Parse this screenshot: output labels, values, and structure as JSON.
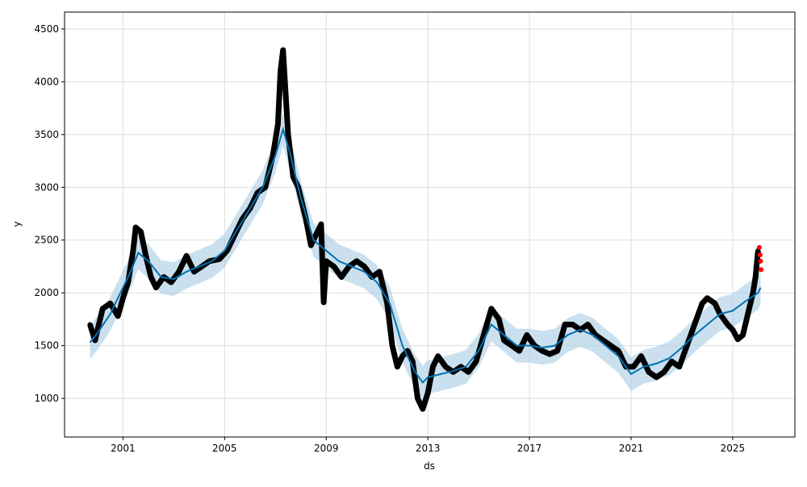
{
  "chart_data": {
    "type": "scatter",
    "title": "",
    "xlabel": "ds",
    "ylabel": "y",
    "xlim": [
      1998.7,
      2027.45
    ],
    "ylim": [
      634,
      4660
    ],
    "grid": true,
    "x_ticks": [
      2001,
      2005,
      2009,
      2013,
      2017,
      2021,
      2025
    ],
    "x_tick_labels": [
      "2001",
      "2005",
      "2009",
      "2013",
      "2017",
      "2021",
      "2025"
    ],
    "y_ticks": [
      1000,
      1500,
      2000,
      2500,
      3000,
      3500,
      4000,
      4500
    ],
    "y_tick_labels": [
      "1000",
      "1500",
      "2000",
      "2500",
      "3000",
      "3500",
      "4000",
      "4500"
    ],
    "colors": {
      "actual": "#000000",
      "forecast": "#0072B2",
      "interval": "#a6cbe3",
      "holdout": "#ff0000"
    },
    "forecast": {
      "x": [
        1999.7,
        2000.0,
        2000.5,
        2001.0,
        2001.3,
        2001.6,
        2002.0,
        2002.5,
        2003.0,
        2003.5,
        2004.0,
        2004.5,
        2005.0,
        2005.5,
        2006.0,
        2006.5,
        2007.0,
        2007.3,
        2007.6,
        2008.0,
        2008.5,
        2009.0,
        2009.5,
        2010.0,
        2010.5,
        2011.0,
        2011.5,
        2012.0,
        2012.5,
        2012.8,
        2013.0,
        2013.5,
        2014.0,
        2014.5,
        2015.0,
        2015.5,
        2016.0,
        2016.5,
        2017.0,
        2017.5,
        2018.0,
        2018.5,
        2019.0,
        2019.5,
        2020.0,
        2020.5,
        2021.0,
        2021.5,
        2022.0,
        2022.5,
        2023.0,
        2023.5,
        2024.0,
        2024.5,
        2025.0,
        2025.5,
        2026.0,
        2026.1
      ],
      "yhat": [
        1530,
        1620,
        1800,
        2050,
        2200,
        2380,
        2300,
        2150,
        2130,
        2200,
        2250,
        2300,
        2400,
        2600,
        2800,
        3000,
        3300,
        3550,
        3300,
        2900,
        2500,
        2400,
        2300,
        2250,
        2200,
        2100,
        1900,
        1500,
        1250,
        1150,
        1200,
        1230,
        1260,
        1300,
        1450,
        1700,
        1600,
        1500,
        1500,
        1480,
        1500,
        1600,
        1650,
        1600,
        1500,
        1400,
        1230,
        1300,
        1330,
        1380,
        1480,
        1600,
        1700,
        1800,
        1830,
        1920,
        2000,
        2050
      ],
      "interval_halfwidth": 160
    },
    "actual": [
      [
        1999.7,
        1700
      ],
      [
        1999.9,
        1550
      ],
      [
        2000.2,
        1850
      ],
      [
        2000.5,
        1900
      ],
      [
        2000.8,
        1780
      ],
      [
        2001.0,
        1950
      ],
      [
        2001.2,
        2100
      ],
      [
        2001.4,
        2400
      ],
      [
        2001.5,
        2620
      ],
      [
        2001.7,
        2580
      ],
      [
        2001.9,
        2350
      ],
      [
        2002.1,
        2150
      ],
      [
        2002.3,
        2050
      ],
      [
        2002.6,
        2150
      ],
      [
        2002.9,
        2100
      ],
      [
        2003.2,
        2200
      ],
      [
        2003.5,
        2350
      ],
      [
        2003.8,
        2200
      ],
      [
        2004.1,
        2250
      ],
      [
        2004.4,
        2300
      ],
      [
        2004.8,
        2320
      ],
      [
        2005.1,
        2400
      ],
      [
        2005.4,
        2550
      ],
      [
        2005.7,
        2700
      ],
      [
        2006.0,
        2800
      ],
      [
        2006.3,
        2950
      ],
      [
        2006.6,
        3000
      ],
      [
        2006.9,
        3300
      ],
      [
        2007.1,
        3600
      ],
      [
        2007.2,
        4100
      ],
      [
        2007.3,
        4300
      ],
      [
        2007.4,
        3900
      ],
      [
        2007.5,
        3500
      ],
      [
        2007.7,
        3100
      ],
      [
        2007.9,
        3000
      ],
      [
        2008.2,
        2700
      ],
      [
        2008.4,
        2450
      ],
      [
        2008.6,
        2550
      ],
      [
        2008.8,
        2650
      ],
      [
        2008.9,
        1910
      ],
      [
        2009.0,
        2300
      ],
      [
        2009.3,
        2250
      ],
      [
        2009.6,
        2150
      ],
      [
        2009.9,
        2250
      ],
      [
        2010.2,
        2300
      ],
      [
        2010.5,
        2250
      ],
      [
        2010.8,
        2150
      ],
      [
        2011.1,
        2200
      ],
      [
        2011.4,
        1900
      ],
      [
        2011.6,
        1500
      ],
      [
        2011.8,
        1300
      ],
      [
        2012.0,
        1400
      ],
      [
        2012.2,
        1450
      ],
      [
        2012.4,
        1350
      ],
      [
        2012.6,
        1000
      ],
      [
        2012.8,
        900
      ],
      [
        2013.0,
        1050
      ],
      [
        2013.2,
        1300
      ],
      [
        2013.4,
        1400
      ],
      [
        2013.7,
        1300
      ],
      [
        2014.0,
        1250
      ],
      [
        2014.3,
        1300
      ],
      [
        2014.6,
        1250
      ],
      [
        2014.9,
        1350
      ],
      [
        2015.2,
        1600
      ],
      [
        2015.5,
        1850
      ],
      [
        2015.8,
        1750
      ],
      [
        2016.0,
        1550
      ],
      [
        2016.3,
        1500
      ],
      [
        2016.6,
        1450
      ],
      [
        2016.9,
        1600
      ],
      [
        2017.2,
        1500
      ],
      [
        2017.5,
        1450
      ],
      [
        2017.8,
        1420
      ],
      [
        2018.1,
        1450
      ],
      [
        2018.4,
        1700
      ],
      [
        2018.7,
        1700
      ],
      [
        2019.0,
        1650
      ],
      [
        2019.3,
        1700
      ],
      [
        2019.6,
        1600
      ],
      [
        2019.9,
        1550
      ],
      [
        2020.2,
        1500
      ],
      [
        2020.5,
        1450
      ],
      [
        2020.8,
        1300
      ],
      [
        2021.1,
        1300
      ],
      [
        2021.4,
        1400
      ],
      [
        2021.7,
        1250
      ],
      [
        2022.0,
        1200
      ],
      [
        2022.3,
        1250
      ],
      [
        2022.6,
        1350
      ],
      [
        2022.9,
        1300
      ],
      [
        2023.2,
        1500
      ],
      [
        2023.5,
        1700
      ],
      [
        2023.8,
        1900
      ],
      [
        2024.0,
        1950
      ],
      [
        2024.3,
        1900
      ],
      [
        2024.5,
        1800
      ],
      [
        2024.8,
        1700
      ],
      [
        2025.0,
        1650
      ],
      [
        2025.2,
        1560
      ],
      [
        2025.4,
        1600
      ],
      [
        2025.6,
        1800
      ],
      [
        2025.8,
        2000
      ],
      [
        2025.9,
        2150
      ],
      [
        2026.0,
        2400
      ]
    ],
    "holdout": [
      [
        2026.05,
        2430
      ],
      [
        2026.08,
        2360
      ],
      [
        2026.1,
        2300
      ],
      [
        2026.12,
        2220
      ]
    ]
  }
}
